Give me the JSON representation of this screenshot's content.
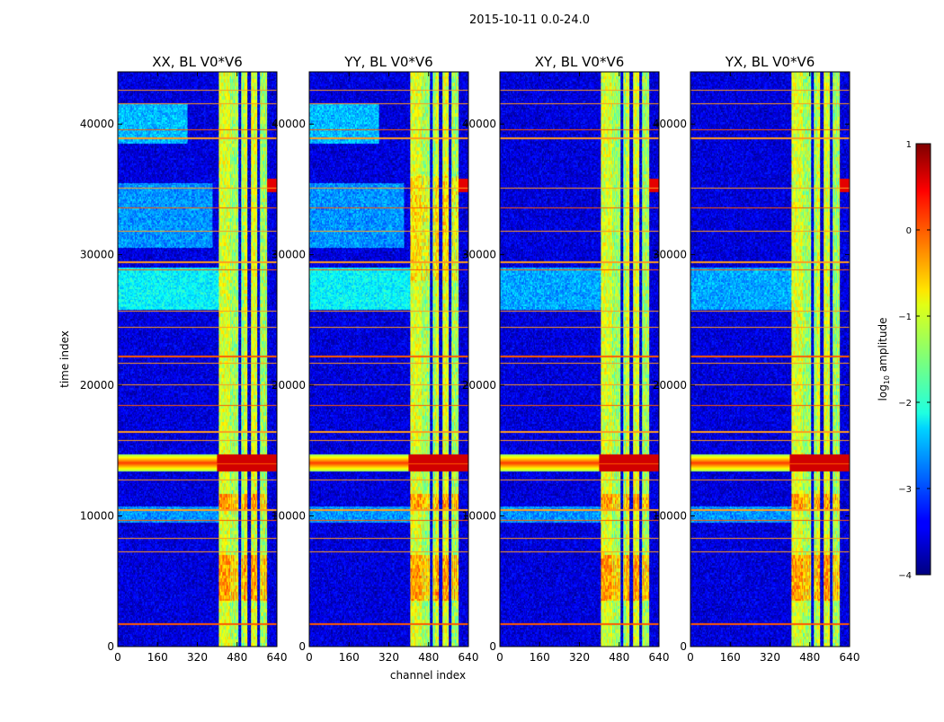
{
  "figure_title": "2015-10-11 0.0-24.0",
  "chart_data": {
    "type": "heatmap",
    "shared_x_label": "channel index",
    "y_label": "time index",
    "x_range": [
      0,
      640
    ],
    "y_range": [
      0,
      44000
    ],
    "x_ticks": [
      0,
      160,
      320,
      480,
      640
    ],
    "x_tick_labels": [
      "0",
      "160",
      "320",
      "480",
      "640"
    ],
    "y_ticks": [
      0,
      10000,
      20000,
      30000,
      40000
    ],
    "y_tick_labels": [
      "0",
      "10000",
      "20000",
      "30000",
      "40000"
    ],
    "panels": [
      {
        "title": "XX, BL V0*V6",
        "pol": "XX"
      },
      {
        "title": "YY, BL V0*V6",
        "pol": "YY"
      },
      {
        "title": "XY, BL V0*V6",
        "pol": "XY"
      },
      {
        "title": "YX, BL V0*V6",
        "pol": "YX"
      }
    ],
    "colorbar": {
      "label": "log10 amplitude",
      "label_base": "log",
      "label_sub": "10",
      "label_rest": " amplitude",
      "range": [
        -4,
        1
      ],
      "ticks": [
        1,
        0,
        -1,
        -2,
        -3,
        -4
      ],
      "tick_labels": [
        "1",
        "0",
        "−1",
        "−2",
        "−3",
        "−4"
      ],
      "colormap": "jet"
    },
    "rfi_channel_bands": [
      [
        405,
        485
      ],
      [
        495,
        520
      ],
      [
        535,
        560
      ],
      [
        570,
        600
      ]
    ],
    "strong_rfi_times": [
      13800,
      14200,
      11000,
      10800,
      4500,
      6000
    ],
    "flagged_time_rows": [
      1800,
      7300,
      8300,
      9700,
      10500,
      12800,
      14000,
      15800,
      16500,
      18500,
      20100,
      21700,
      22300,
      24500,
      25700,
      28900,
      29500,
      31800,
      33600,
      35100,
      39000,
      39600,
      41600,
      42600
    ]
  }
}
